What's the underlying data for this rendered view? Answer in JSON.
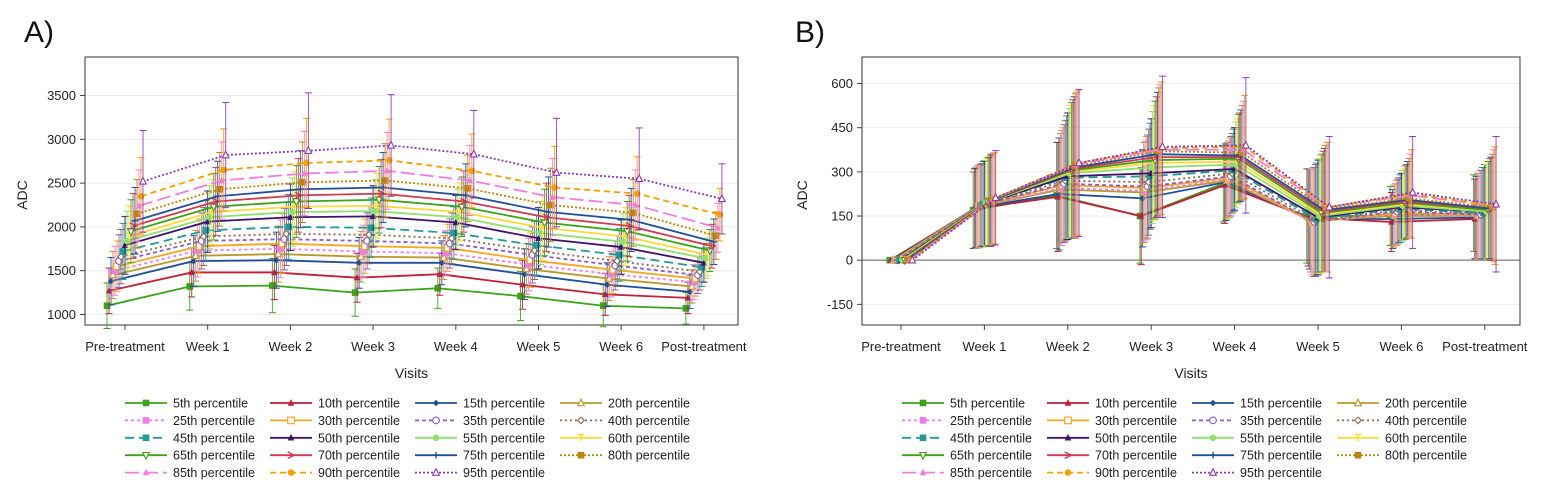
{
  "chart_data": [
    {
      "type": "line",
      "panel_label": "A)",
      "xlabel": "Visits",
      "ylabel": "ADC",
      "categories": [
        "Pre-treatment",
        "Week 1",
        "Week 2",
        "Week 3",
        "Week 4",
        "Week 5",
        "Week 6",
        "Post-treatment"
      ],
      "yticks": [
        1000,
        1500,
        2000,
        2500,
        3000,
        3500
      ],
      "ylim": [
        880,
        3940
      ],
      "zero_line": false,
      "series": [
        {
          "name": "5th percentile",
          "values": [
            1100,
            1320,
            1330,
            1250,
            1300,
            1210,
            1100,
            1070
          ],
          "errors": [
            260,
            270,
            310,
            270,
            230,
            280,
            240,
            180
          ]
        },
        {
          "name": "10th percentile",
          "values": [
            1270,
            1480,
            1480,
            1420,
            1460,
            1340,
            1230,
            1190
          ],
          "errors": [
            260,
            280,
            310,
            280,
            240,
            280,
            240,
            180
          ]
        },
        {
          "name": "15th percentile",
          "values": [
            1380,
            1610,
            1620,
            1590,
            1590,
            1460,
            1340,
            1260
          ],
          "errors": [
            270,
            290,
            320,
            290,
            250,
            290,
            250,
            190
          ]
        },
        {
          "name": "20th percentile",
          "values": [
            1450,
            1670,
            1690,
            1660,
            1650,
            1520,
            1410,
            1320
          ],
          "errors": [
            270,
            290,
            320,
            290,
            250,
            290,
            250,
            190
          ]
        },
        {
          "name": "25th percentile",
          "values": [
            1500,
            1730,
            1750,
            1720,
            1700,
            1570,
            1460,
            1370
          ],
          "errors": [
            280,
            300,
            330,
            300,
            260,
            300,
            260,
            200
          ]
        },
        {
          "name": "30th percentile",
          "values": [
            1550,
            1780,
            1810,
            1780,
            1760,
            1620,
            1510,
            1410
          ],
          "errors": [
            290,
            310,
            340,
            310,
            270,
            310,
            270,
            200
          ]
        },
        {
          "name": "35th percentile",
          "values": [
            1610,
            1840,
            1860,
            1840,
            1810,
            1680,
            1560,
            1450
          ],
          "errors": [
            300,
            320,
            350,
            320,
            280,
            320,
            280,
            210
          ]
        },
        {
          "name": "40th percentile",
          "values": [
            1660,
            1890,
            1920,
            1910,
            1870,
            1730,
            1610,
            1490
          ],
          "errors": [
            310,
            330,
            360,
            330,
            290,
            330,
            290,
            210
          ]
        },
        {
          "name": "45th percentile",
          "values": [
            1720,
            1960,
            2000,
            1990,
            1930,
            1790,
            1680,
            1540
          ],
          "errors": [
            320,
            340,
            370,
            340,
            300,
            340,
            300,
            220
          ]
        },
        {
          "name": "50th percentile",
          "values": [
            1790,
            2060,
            2110,
            2120,
            2050,
            1870,
            1770,
            1590
          ],
          "errors": [
            330,
            350,
            380,
            350,
            310,
            350,
            310,
            220
          ]
        },
        {
          "name": "55th percentile",
          "values": [
            1840,
            2110,
            2170,
            2180,
            2110,
            1930,
            1830,
            1640
          ],
          "errors": [
            340,
            360,
            390,
            360,
            320,
            360,
            320,
            230
          ]
        },
        {
          "name": "60th percentile",
          "values": [
            1890,
            2170,
            2230,
            2240,
            2170,
            1990,
            1890,
            1680
          ],
          "errors": [
            350,
            370,
            400,
            370,
            330,
            370,
            330,
            240
          ]
        },
        {
          "name": "65th percentile",
          "values": [
            1950,
            2230,
            2290,
            2310,
            2230,
            2050,
            1950,
            1730
          ],
          "errors": [
            360,
            380,
            410,
            380,
            340,
            380,
            340,
            240
          ]
        },
        {
          "name": "70th percentile",
          "values": [
            2010,
            2290,
            2360,
            2380,
            2290,
            2110,
            2010,
            1780
          ],
          "errors": [
            370,
            390,
            420,
            390,
            350,
            390,
            350,
            250
          ]
        },
        {
          "name": "75th percentile",
          "values": [
            2070,
            2350,
            2430,
            2450,
            2360,
            2170,
            2080,
            1830
          ],
          "errors": [
            380,
            400,
            440,
            400,
            360,
            400,
            360,
            260
          ]
        },
        {
          "name": "80th percentile",
          "values": [
            2150,
            2430,
            2510,
            2530,
            2440,
            2250,
            2160,
            1900
          ],
          "errors": [
            390,
            420,
            460,
            420,
            380,
            420,
            380,
            270
          ]
        },
        {
          "name": "85th percentile",
          "values": [
            2240,
            2530,
            2610,
            2640,
            2530,
            2340,
            2250,
            1990
          ],
          "errors": [
            410,
            440,
            480,
            440,
            400,
            440,
            400,
            280
          ]
        },
        {
          "name": "90th percentile",
          "values": [
            2350,
            2650,
            2730,
            2760,
            2640,
            2450,
            2380,
            2140
          ],
          "errors": [
            440,
            470,
            510,
            470,
            420,
            470,
            420,
            300
          ]
        },
        {
          "name": "95th percentile",
          "values": [
            2520,
            2820,
            2870,
            2930,
            2830,
            2620,
            2550,
            2320
          ],
          "errors": [
            580,
            600,
            660,
            580,
            500,
            620,
            580,
            400
          ]
        }
      ]
    },
    {
      "type": "line",
      "panel_label": "B)",
      "xlabel": "Visits",
      "ylabel": "ADC",
      "categories": [
        "Pre-treatment",
        "Week 1",
        "Week 2",
        "Week 3",
        "Week 4",
        "Week 5",
        "Week 6",
        "Post-treatment"
      ],
      "yticks": [
        -150,
        0,
        150,
        300,
        450,
        600
      ],
      "ylim": [
        -220,
        690
      ],
      "zero_line": true,
      "series": [
        {
          "name": "5th percentile",
          "values": [
            0,
            170,
            220,
            150,
            260,
            150,
            150,
            160
          ],
          "errors": [
            0,
            130,
            180,
            160,
            130,
            160,
            100,
            130
          ]
        },
        {
          "name": "10th percentile",
          "values": [
            0,
            175,
            215,
            150,
            255,
            145,
            130,
            140
          ],
          "errors": [
            0,
            135,
            185,
            165,
            130,
            165,
            100,
            135
          ]
        },
        {
          "name": "15th percentile",
          "values": [
            0,
            178,
            225,
            210,
            265,
            140,
            140,
            145
          ],
          "errors": [
            0,
            135,
            190,
            165,
            130,
            170,
            100,
            140
          ]
        },
        {
          "name": "20th percentile",
          "values": [
            0,
            180,
            240,
            230,
            270,
            135,
            150,
            150
          ],
          "errors": [
            0,
            140,
            190,
            170,
            130,
            175,
            105,
            145
          ]
        },
        {
          "name": "25th percentile",
          "values": [
            0,
            182,
            245,
            235,
            275,
            130,
            155,
            150
          ],
          "errors": [
            0,
            140,
            195,
            170,
            130,
            180,
            105,
            145
          ]
        },
        {
          "name": "30th percentile",
          "values": [
            0,
            184,
            255,
            245,
            280,
            130,
            160,
            155
          ],
          "errors": [
            0,
            140,
            195,
            175,
            135,
            185,
            110,
            150
          ]
        },
        {
          "name": "35th percentile",
          "values": [
            0,
            186,
            260,
            250,
            285,
            130,
            165,
            155
          ],
          "errors": [
            0,
            140,
            200,
            175,
            135,
            185,
            110,
            150
          ]
        },
        {
          "name": "40th percentile",
          "values": [
            0,
            188,
            270,
            265,
            295,
            135,
            170,
            160
          ],
          "errors": [
            0,
            140,
            205,
            180,
            135,
            190,
            110,
            155
          ]
        },
        {
          "name": "45th percentile",
          "values": [
            0,
            190,
            280,
            285,
            305,
            140,
            175,
            160
          ],
          "errors": [
            0,
            145,
            210,
            180,
            140,
            190,
            115,
            155
          ]
        },
        {
          "name": "50th percentile",
          "values": [
            0,
            192,
            285,
            295,
            310,
            145,
            180,
            165
          ],
          "errors": [
            0,
            145,
            215,
            185,
            140,
            195,
            115,
            160
          ]
        },
        {
          "name": "55th percentile",
          "values": [
            0,
            194,
            295,
            315,
            325,
            150,
            185,
            165
          ],
          "errors": [
            0,
            145,
            220,
            190,
            145,
            195,
            120,
            160
          ]
        },
        {
          "name": "60th percentile",
          "values": [
            0,
            196,
            300,
            330,
            335,
            155,
            190,
            170
          ],
          "errors": [
            0,
            150,
            225,
            195,
            145,
            200,
            120,
            165
          ]
        },
        {
          "name": "65th percentile",
          "values": [
            0,
            198,
            305,
            340,
            345,
            160,
            195,
            170
          ],
          "errors": [
            0,
            150,
            230,
            200,
            150,
            200,
            125,
            165
          ]
        },
        {
          "name": "70th percentile",
          "values": [
            0,
            200,
            310,
            350,
            350,
            165,
            200,
            175
          ],
          "errors": [
            0,
            150,
            235,
            205,
            150,
            205,
            125,
            170
          ]
        },
        {
          "name": "75th percentile",
          "values": [
            0,
            202,
            315,
            360,
            355,
            170,
            205,
            175
          ],
          "errors": [
            0,
            155,
            240,
            210,
            155,
            210,
            130,
            175
          ]
        },
        {
          "name": "80th percentile",
          "values": [
            0,
            205,
            320,
            370,
            365,
            175,
            210,
            180
          ],
          "errors": [
            0,
            155,
            245,
            215,
            160,
            215,
            135,
            180
          ]
        },
        {
          "name": "85th percentile",
          "values": [
            0,
            208,
            325,
            375,
            375,
            180,
            220,
            185
          ],
          "errors": [
            0,
            155,
            245,
            220,
            165,
            220,
            140,
            190
          ]
        },
        {
          "name": "90th percentile",
          "values": [
            0,
            210,
            330,
            380,
            385,
            180,
            225,
            185
          ],
          "errors": [
            0,
            155,
            245,
            225,
            175,
            220,
            150,
            200
          ]
        },
        {
          "name": "95th percentile",
          "values": [
            0,
            212,
            330,
            385,
            390,
            180,
            230,
            190
          ],
          "errors": [
            0,
            160,
            250,
            240,
            230,
            240,
            190,
            230
          ]
        }
      ]
    }
  ],
  "colors": [
    "#3aa318",
    "#f07ce8",
    "#239a96",
    "#3aa318",
    "#f07ce8",
    "#c41e3a",
    "#f5a623",
    "#3d1468",
    "#d43a4a",
    "#f5a000",
    "#1f4e9c",
    "#8a5cc8",
    "#8fe070",
    "#1f4e9c",
    "#8a5cc8",
    "#b89a2c",
    "#8a6a52",
    "#ffd83a",
    "#b8860b"
  ],
  "legend_order": [
    "5th percentile",
    "10th percentile",
    "15th percentile",
    "20th percentile",
    "25th percentile",
    "30th percentile",
    "35th percentile",
    "40th percentile",
    "45th percentile",
    "50th percentile",
    "55th percentile",
    "60th percentile",
    "65th percentile",
    "70th percentile",
    "75th percentile",
    "80th percentile",
    "85th percentile",
    "90th percentile",
    "95th percentile"
  ]
}
